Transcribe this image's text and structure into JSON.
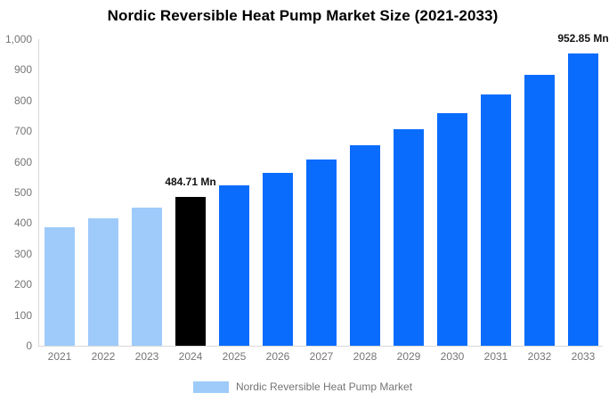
{
  "title": "Nordic Reversible Heat Pump Market Size (2021-2033)",
  "legend": {
    "label": "Nordic Reversible Heat Pump Market",
    "swatch_color": "#9ecbfa"
  },
  "colors": {
    "historical_bar": "#9ecbfa",
    "highlight_bar": "#000000",
    "forecast_bar": "#0a6cfd",
    "axis_line": "#d9d9d9",
    "tick_text": "#757575",
    "annotation_text": "#111111"
  },
  "chart_data": {
    "type": "bar",
    "title": "Nordic Reversible Heat Pump Market Size (2021-2033)",
    "xlabel": "",
    "ylabel": "",
    "categories": [
      "2021",
      "2022",
      "2023",
      "2024",
      "2025",
      "2026",
      "2027",
      "2028",
      "2029",
      "2030",
      "2031",
      "2032",
      "2033"
    ],
    "values": [
      387,
      417,
      450,
      484.71,
      522,
      563,
      607,
      654,
      705,
      760,
      819,
      883,
      952.85
    ],
    "bar_colors": [
      "#9ecbfa",
      "#9ecbfa",
      "#9ecbfa",
      "#000000",
      "#0a6cfd",
      "#0a6cfd",
      "#0a6cfd",
      "#0a6cfd",
      "#0a6cfd",
      "#0a6cfd",
      "#0a6cfd",
      "#0a6cfd",
      "#0a6cfd"
    ],
    "annotations": [
      {
        "index": 3,
        "text": "484.71 Mn"
      },
      {
        "index": 12,
        "text": "952.85 Mn"
      }
    ],
    "ylim": [
      0,
      1000
    ],
    "ytick_values": [
      0,
      100,
      200,
      300,
      400,
      500,
      600,
      700,
      800,
      900,
      1000
    ],
    "ytick_labels": [
      "0",
      "100",
      "200",
      "300",
      "400",
      "500",
      "600",
      "700",
      "800",
      "900",
      "1,000"
    ],
    "grid": false,
    "legend_position": "bottom",
    "legend_entries": [
      "Nordic Reversible Heat Pump Market"
    ]
  }
}
